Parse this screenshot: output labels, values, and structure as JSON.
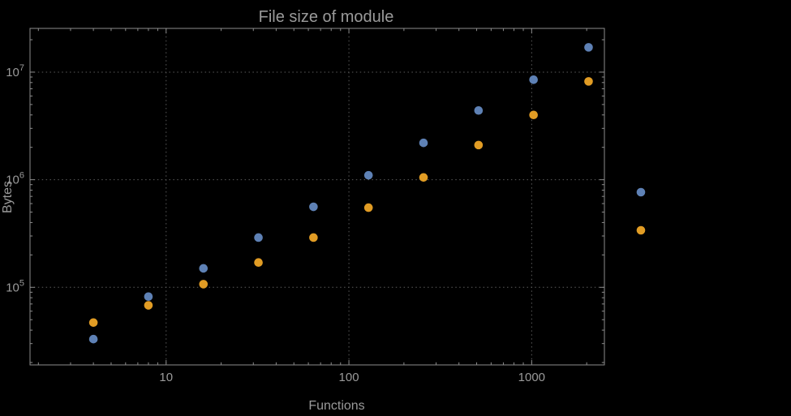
{
  "colors": {
    "background": "#000000",
    "frame": "#8c8c8c",
    "grid": "#5c5c5c",
    "text": "#9a9a9a",
    "series_blue": "#5e81b5",
    "series_orange": "#e19c24"
  },
  "chart_data": {
    "type": "scatter",
    "title": "File size of module",
    "xlabel": "Functions",
    "ylabel": "Bytes",
    "x_scale": "log",
    "y_scale": "log",
    "grid": "dotted",
    "legend_position": "right-center",
    "xlim": [
      1.8,
      2500
    ],
    "ylim": [
      19000,
      25500000
    ],
    "x_ticks": [
      10,
      100,
      1000
    ],
    "x_tick_labels": [
      "10",
      "100",
      "1000"
    ],
    "y_ticks": [
      100000,
      1000000,
      10000000
    ],
    "y_tick_labels": [
      "10^5",
      "10^6",
      "10^7"
    ],
    "x": [
      4,
      8,
      16,
      32,
      64,
      128,
      256,
      512,
      1024,
      2048
    ],
    "series": [
      {
        "name": "series-1-blue",
        "color": "#5e81b5",
        "values": [
          33000,
          82000,
          150000,
          290000,
          560000,
          1100000,
          2200000,
          4400000,
          8500000,
          17000000
        ]
      },
      {
        "name": "series-2-orange",
        "color": "#e19c24",
        "values": [
          47000,
          68000,
          107000,
          170000,
          290000,
          550000,
          1050000,
          2100000,
          4000000,
          8200000
        ]
      }
    ]
  }
}
